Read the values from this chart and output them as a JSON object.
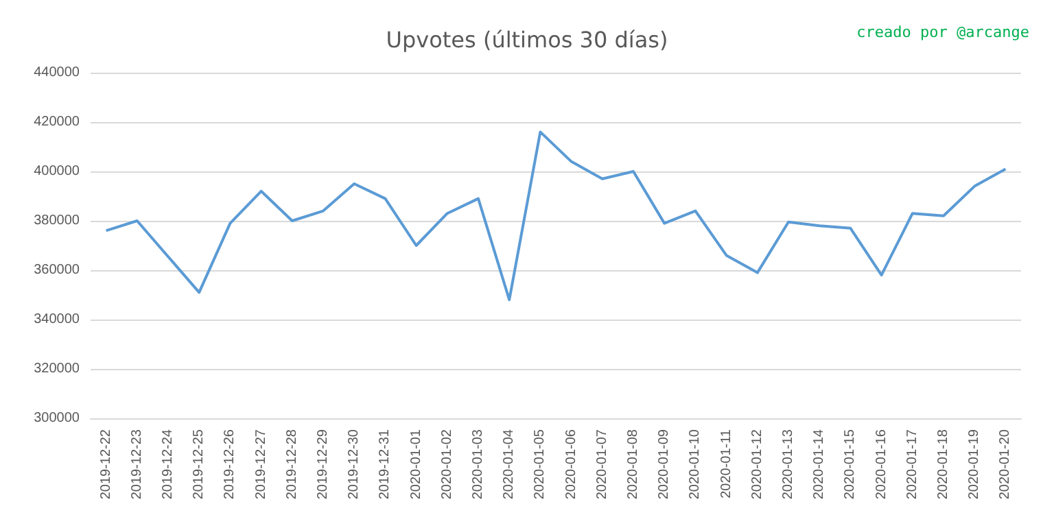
{
  "chart_data": {
    "type": "line",
    "title": "Upvotes (últimos 30 días)",
    "annotations": [
      "creado por @arcange"
    ],
    "categories": [
      "2019-12-22",
      "2019-12-23",
      "2019-12-24",
      "2019-12-25",
      "2019-12-26",
      "2019-12-27",
      "2019-12-28",
      "2019-12-29",
      "2019-12-30",
      "2019-12-31",
      "2020-01-01",
      "2020-01-02",
      "2020-01-03",
      "2020-01-04",
      "2020-01-05",
      "2020-01-06",
      "2020-01-07",
      "2020-01-08",
      "2020-01-09",
      "2020-01-10",
      "2020-01-11",
      "2020-01-12",
      "2020-01-13",
      "2020-01-14",
      "2020-01-15",
      "2020-01-16",
      "2020-01-17",
      "2020-01-18",
      "2020-01-19",
      "2020-01-20"
    ],
    "series": [
      {
        "color": "#5b9bd5",
        "values": [
          376000,
          380000,
          365500,
          351000,
          379000,
          392000,
          380000,
          384000,
          395000,
          389000,
          370000,
          383000,
          389000,
          348000,
          416000,
          404000,
          397000,
          400000,
          379000,
          384000,
          366000,
          359000,
          379500,
          378000,
          377000,
          358000,
          383000,
          382000,
          394000,
          401000
        ]
      }
    ],
    "ylim": [
      300000,
      440000
    ],
    "yticks": [
      300000,
      320000,
      340000,
      360000,
      380000,
      400000,
      420000,
      440000
    ],
    "grid": "y",
    "marker": "none",
    "line_style": "solid"
  }
}
